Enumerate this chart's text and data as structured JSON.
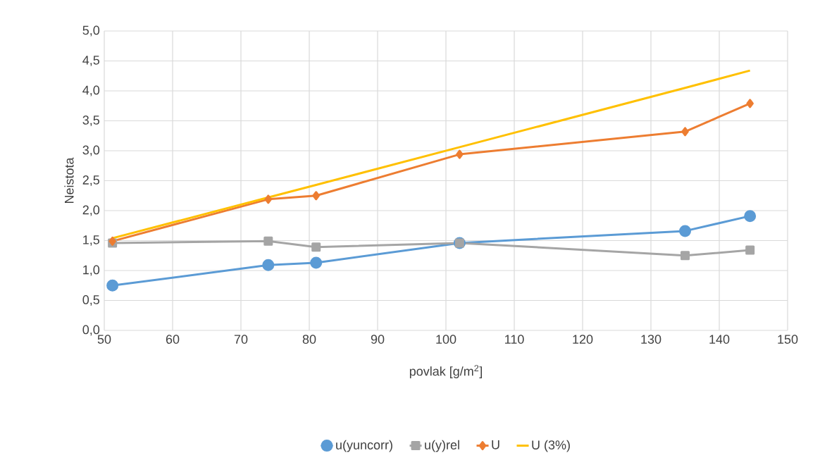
{
  "chart_data": {
    "type": "line",
    "xlabel": "povlak [g/m$^{2}$]",
    "ylabel": "Neistota",
    "xlim": [
      50,
      150
    ],
    "xticks": [
      50,
      60,
      70,
      80,
      90,
      100,
      110,
      120,
      130,
      140,
      150
    ],
    "ylim": [
      0,
      5
    ],
    "yticks": [
      {
        "value": 0,
        "label": "0,0"
      },
      {
        "value": 0.5,
        "label": "0,5"
      },
      {
        "value": 1,
        "label": "1,0"
      },
      {
        "value": 1.5,
        "label": "1,5"
      },
      {
        "value": 2,
        "label": "2,0"
      },
      {
        "value": 2.5,
        "label": "2,5"
      },
      {
        "value": 3,
        "label": "3,0"
      },
      {
        "value": 3.5,
        "label": "3,5"
      },
      {
        "value": 4,
        "label": "4,0"
      },
      {
        "value": 4.5,
        "label": "4,5"
      },
      {
        "value": 5,
        "label": "5,0"
      }
    ],
    "grid": true,
    "legend": "bottom",
    "line_style": "solid",
    "x": [
      51.2,
      74,
      81,
      102,
      135,
      144.5
    ],
    "series": [
      {
        "name": "u(yuncorr)",
        "color": "#5b9bd5",
        "marker": "circle",
        "values": [
          0.75,
          1.09,
          1.13,
          1.46,
          1.66,
          1.91
        ]
      },
      {
        "name": "u(y)rel",
        "color": "#a5a5a5",
        "marker": "square",
        "values": [
          1.46,
          1.49,
          1.39,
          1.46,
          1.25,
          1.34
        ]
      },
      {
        "name": "U",
        "color": "#ed7d31",
        "marker": "diamond",
        "values": [
          1.49,
          2.19,
          2.25,
          2.94,
          3.32,
          3.79
        ]
      },
      {
        "name": "U (3%)",
        "color": "#ffc000",
        "marker": "none",
        "values": [
          1.54,
          2.22,
          2.43,
          3.06,
          4.05,
          4.34
        ]
      }
    ]
  }
}
